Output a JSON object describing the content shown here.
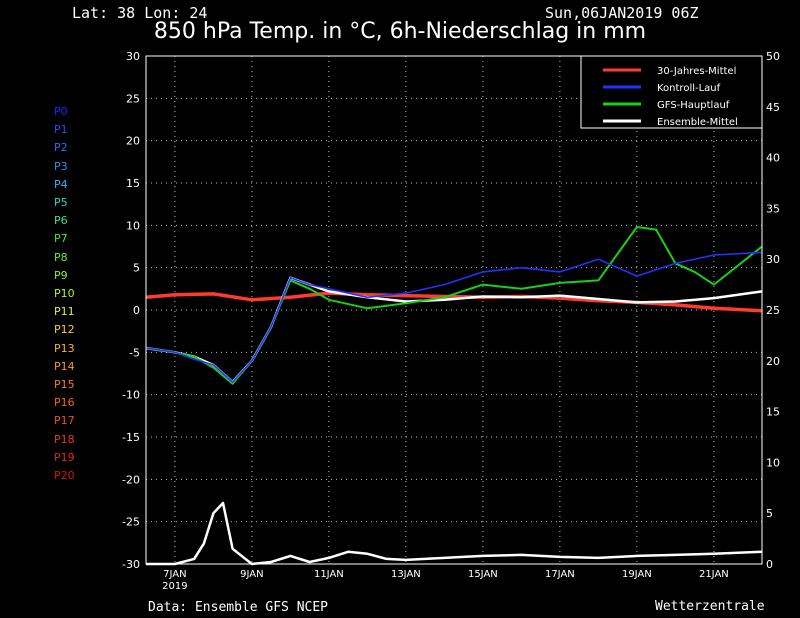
{
  "header": {
    "location": "Lat: 38 Lon: 24",
    "datetime": "Sun,06JAN2019 06Z",
    "title": "850 hPa Temp. in °C, 6h-Niederschlag in mm"
  },
  "footer": {
    "source": "Data: Ensemble GFS NCEP",
    "brand": "Wetterzentrale"
  },
  "members": [
    {
      "label": "P0",
      "color": "#2222ff"
    },
    {
      "label": "P1",
      "color": "#2b4bff"
    },
    {
      "label": "P2",
      "color": "#2f6dff"
    },
    {
      "label": "P3",
      "color": "#3190f5"
    },
    {
      "label": "P4",
      "color": "#34b3ef"
    },
    {
      "label": "P5",
      "color": "#39d0c4"
    },
    {
      "label": "P6",
      "color": "#3ee086"
    },
    {
      "label": "P7",
      "color": "#49e84b"
    },
    {
      "label": "P8",
      "color": "#68ef35"
    },
    {
      "label": "P9",
      "color": "#8cf230"
    },
    {
      "label": "P10",
      "color": "#b8f228"
    },
    {
      "label": "P11",
      "color": "#e8f21e"
    },
    {
      "label": "P12",
      "color": "#f2d21d"
    },
    {
      "label": "P13",
      "color": "#f2b61d"
    },
    {
      "label": "P14",
      "color": "#f29a1d"
    },
    {
      "label": "P15",
      "color": "#f2801d"
    },
    {
      "label": "P16",
      "color": "#f2661d"
    },
    {
      "label": "P17",
      "color": "#f24e1d"
    },
    {
      "label": "P18",
      "color": "#e8381b"
    },
    {
      "label": "P19",
      "color": "#dd2a1a"
    },
    {
      "label": "P20",
      "color": "#cc1818"
    }
  ],
  "chart_data": {
    "type": "line",
    "x_range": [
      "06JAN 12Z",
      "22JAN 12Z"
    ],
    "x_ticks": [
      {
        "label": "7JAN",
        "sub": "2019",
        "day": 7
      },
      {
        "label": "9JAN",
        "day": 9
      },
      {
        "label": "11JAN",
        "day": 11
      },
      {
        "label": "13JAN",
        "day": 13
      },
      {
        "label": "15JAN",
        "day": 15
      },
      {
        "label": "17JAN",
        "day": 17
      },
      {
        "label": "19JAN",
        "day": 19
      },
      {
        "label": "21JAN",
        "day": 21
      }
    ],
    "x_start_day": 6.25,
    "x_end_day": 22.25,
    "y_left": {
      "ylim": [
        -30,
        30
      ],
      "ticks": [
        -30,
        -25,
        -20,
        -15,
        -10,
        -5,
        0,
        5,
        10,
        15,
        20,
        25,
        30
      ]
    },
    "y_right": {
      "ylim": [
        0,
        50
      ],
      "ticks": [
        0,
        5,
        10,
        15,
        20,
        25,
        30,
        35,
        40,
        45,
        50
      ]
    },
    "grid": true,
    "legend_position": "top-right",
    "legend": [
      {
        "name": "30-Jahres-Mittel",
        "color": "#ff3b30"
      },
      {
        "name": "Kontroll-Lauf",
        "color": "#2233ff"
      },
      {
        "name": "GFS-Hauptlauf",
        "color": "#18d018"
      },
      {
        "name": "Ensemble-Mittel",
        "color": "#ffffff"
      }
    ],
    "series": [
      {
        "name": "30-Jahres-Mittel",
        "axis": "left",
        "color": "#ff3b30",
        "x": [
          6.25,
          7,
          8,
          9,
          10,
          11,
          12,
          13,
          14,
          15,
          16,
          17,
          18,
          19,
          20,
          21,
          22.25
        ],
        "y": [
          1.5,
          1.8,
          1.9,
          1.2,
          1.5,
          2.0,
          1.8,
          1.7,
          1.6,
          1.5,
          1.6,
          1.4,
          1.1,
          0.9,
          0.6,
          0.2,
          -0.1
        ]
      },
      {
        "name": "Ensemble-Mittel",
        "axis": "left",
        "color": "#ffffff",
        "x": [
          6.25,
          7,
          7.5,
          8,
          8.5,
          9,
          9.5,
          10,
          10.5,
          11,
          12,
          13,
          14,
          15,
          16,
          17,
          18,
          19,
          20,
          21,
          22.25
        ],
        "y": [
          -4.5,
          -5,
          -5.5,
          -6.5,
          -8.5,
          -6,
          -2,
          3.8,
          3,
          2.2,
          1.5,
          1,
          1.2,
          1.6,
          1.5,
          1.7,
          1.3,
          0.9,
          1.0,
          1.4,
          2.2
        ]
      },
      {
        "name": "GFS-Hauptlauf",
        "axis": "left",
        "color": "#18d018",
        "x": [
          6.25,
          7,
          7.5,
          8,
          8.5,
          9,
          9.5,
          10,
          10.5,
          11,
          12,
          13,
          14,
          15,
          16,
          17,
          18,
          19,
          19.5,
          20,
          20.5,
          21,
          22.25
        ],
        "y": [
          -4.5,
          -5,
          -5.5,
          -6.8,
          -8.7,
          -6,
          -2,
          3.5,
          2.5,
          1.2,
          0.2,
          0.8,
          1.5,
          3.0,
          2.5,
          3.2,
          3.5,
          9.8,
          9.5,
          5.5,
          4.5,
          3.0,
          7.5
        ]
      },
      {
        "name": "Kontroll-Lauf",
        "axis": "left",
        "color": "#2233ff",
        "x": [
          6.25,
          7,
          7.5,
          8,
          8.5,
          9,
          9.5,
          10,
          10.5,
          11,
          12,
          13,
          14,
          15,
          16,
          17,
          18,
          19,
          20,
          21,
          22.25
        ],
        "y": [
          -4.5,
          -5,
          -5.8,
          -6.5,
          -8.5,
          -6,
          -2,
          3.8,
          3,
          2.5,
          1.5,
          2.0,
          3.0,
          4.5,
          5.0,
          4.5,
          6.0,
          4.0,
          5.5,
          6.5,
          6.8
        ]
      },
      {
        "name": "Ensemble-Mittel Niederschlag",
        "axis": "right",
        "color": "#ffffff",
        "x": [
          6.25,
          7,
          7.5,
          7.75,
          8,
          8.25,
          8.5,
          9,
          9.5,
          10,
          10.5,
          11,
          11.5,
          12,
          12.5,
          13,
          14,
          15,
          16,
          17,
          18,
          19,
          20,
          21,
          22.25
        ],
        "y": [
          0,
          0,
          0.5,
          2,
          5,
          6,
          1.5,
          0,
          0.2,
          0.8,
          0.2,
          0.6,
          1.2,
          1.0,
          0.5,
          0.4,
          0.6,
          0.8,
          0.9,
          0.7,
          0.6,
          0.8,
          0.9,
          1.0,
          1.2
        ]
      }
    ]
  }
}
